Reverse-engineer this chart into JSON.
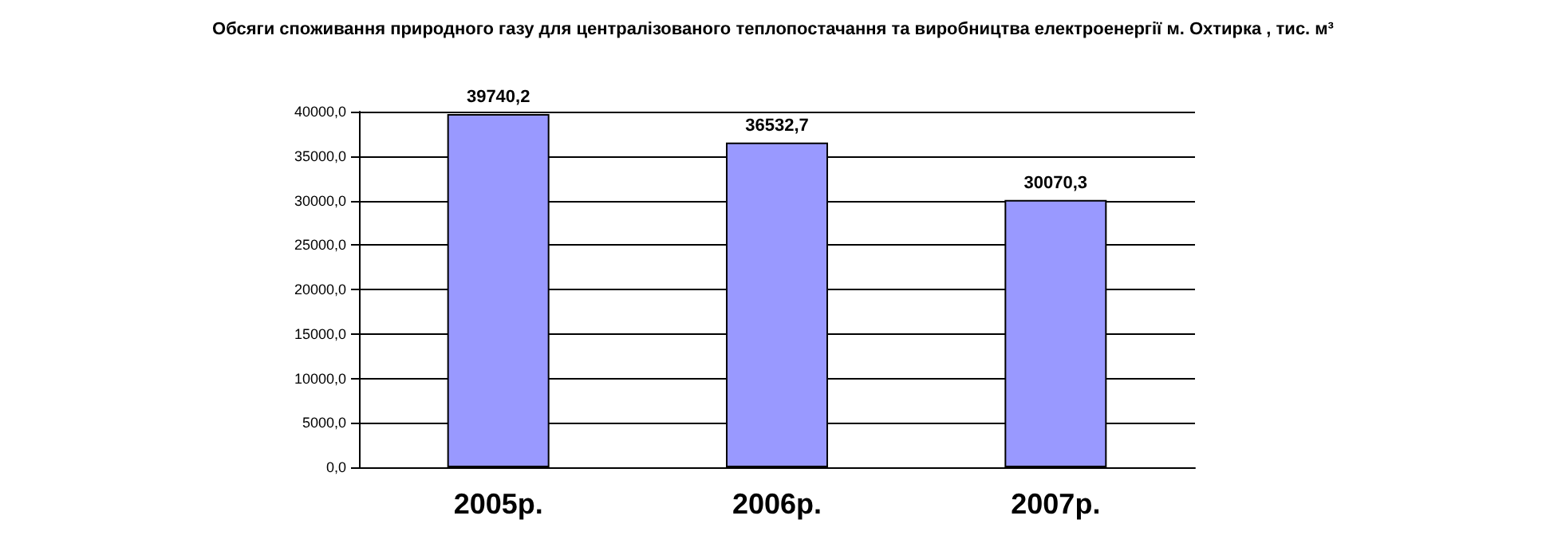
{
  "chart_data": {
    "type": "bar",
    "title": "Обсяги споживання природного газу для централізованого теплопостачання та виробництва електроенергії м. Охтирка , тис. м³",
    "categories": [
      "2005р.",
      "2006р.",
      "2007р."
    ],
    "values": [
      39740.2,
      36532.7,
      30070.3
    ],
    "value_labels": [
      "39740,2",
      "36532,7",
      "30070,3"
    ],
    "color": "#9999ff",
    "ylim": [
      0,
      40000
    ],
    "yticks": [
      {
        "value": 0,
        "label": "0,0"
      },
      {
        "value": 5000,
        "label": "5000,0"
      },
      {
        "value": 10000,
        "label": "10000,0"
      },
      {
        "value": 15000,
        "label": "15000,0"
      },
      {
        "value": 20000,
        "label": "20000,0"
      },
      {
        "value": 25000,
        "label": "25000,0"
      },
      {
        "value": 30000,
        "label": "30000,0"
      },
      {
        "value": 35000,
        "label": "35000,0"
      },
      {
        "value": 40000,
        "label": "40000,0"
      }
    ],
    "grid": "y"
  }
}
